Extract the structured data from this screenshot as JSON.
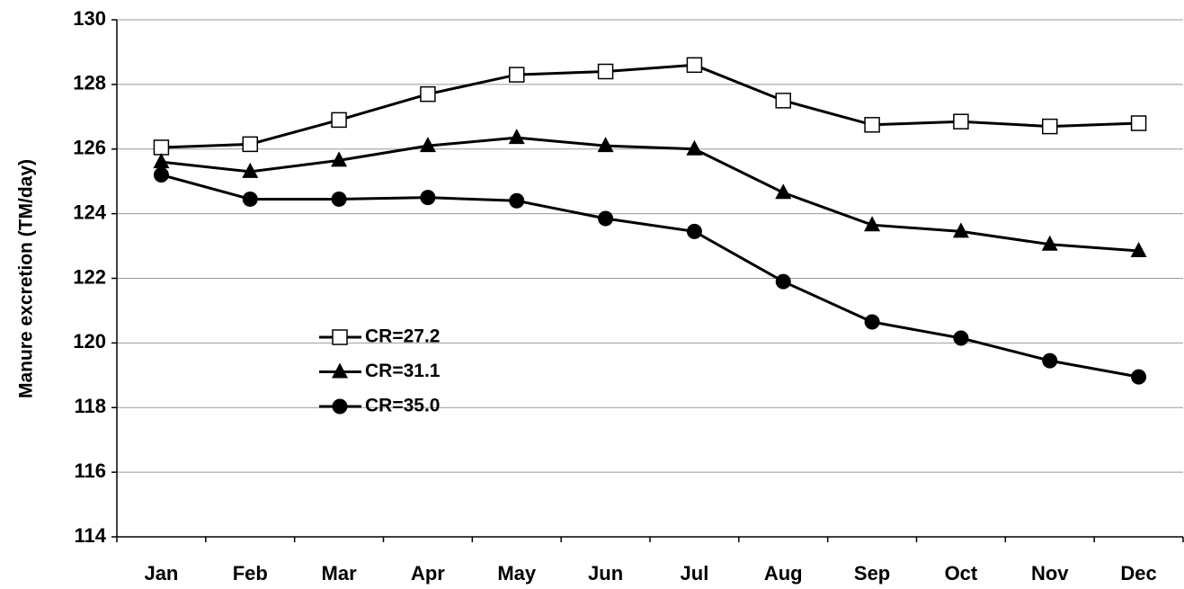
{
  "chart_data": {
    "type": "line",
    "y_label": "Manure excretion (TM/day)",
    "categories": [
      "Jan",
      "Feb",
      "Mar",
      "Apr",
      "May",
      "Jun",
      "Jul",
      "Aug",
      "Sep",
      "Oct",
      "Nov",
      "Dec"
    ],
    "series": [
      {
        "name": "CR=27.2",
        "color": "#000000",
        "marker": "square-open",
        "values": [
          126.05,
          126.15,
          126.9,
          127.7,
          128.3,
          128.4,
          128.6,
          127.5,
          126.75,
          126.85,
          126.7,
          126.8
        ]
      },
      {
        "name": "CR=31.1",
        "color": "#000000",
        "marker": "triangle",
        "values": [
          125.6,
          125.3,
          125.65,
          126.1,
          126.35,
          126.1,
          126.0,
          124.65,
          123.65,
          123.45,
          123.05,
          122.85
        ]
      },
      {
        "name": "CR=35.0",
        "color": "#000000",
        "marker": "circle",
        "values": [
          125.2,
          124.45,
          124.45,
          124.5,
          124.4,
          123.85,
          123.45,
          121.9,
          120.65,
          120.15,
          119.45,
          118.95
        ]
      }
    ],
    "ylim": [
      114,
      130
    ],
    "yticks": [
      114,
      116,
      118,
      120,
      122,
      124,
      126,
      128,
      130
    ],
    "grid": true
  }
}
